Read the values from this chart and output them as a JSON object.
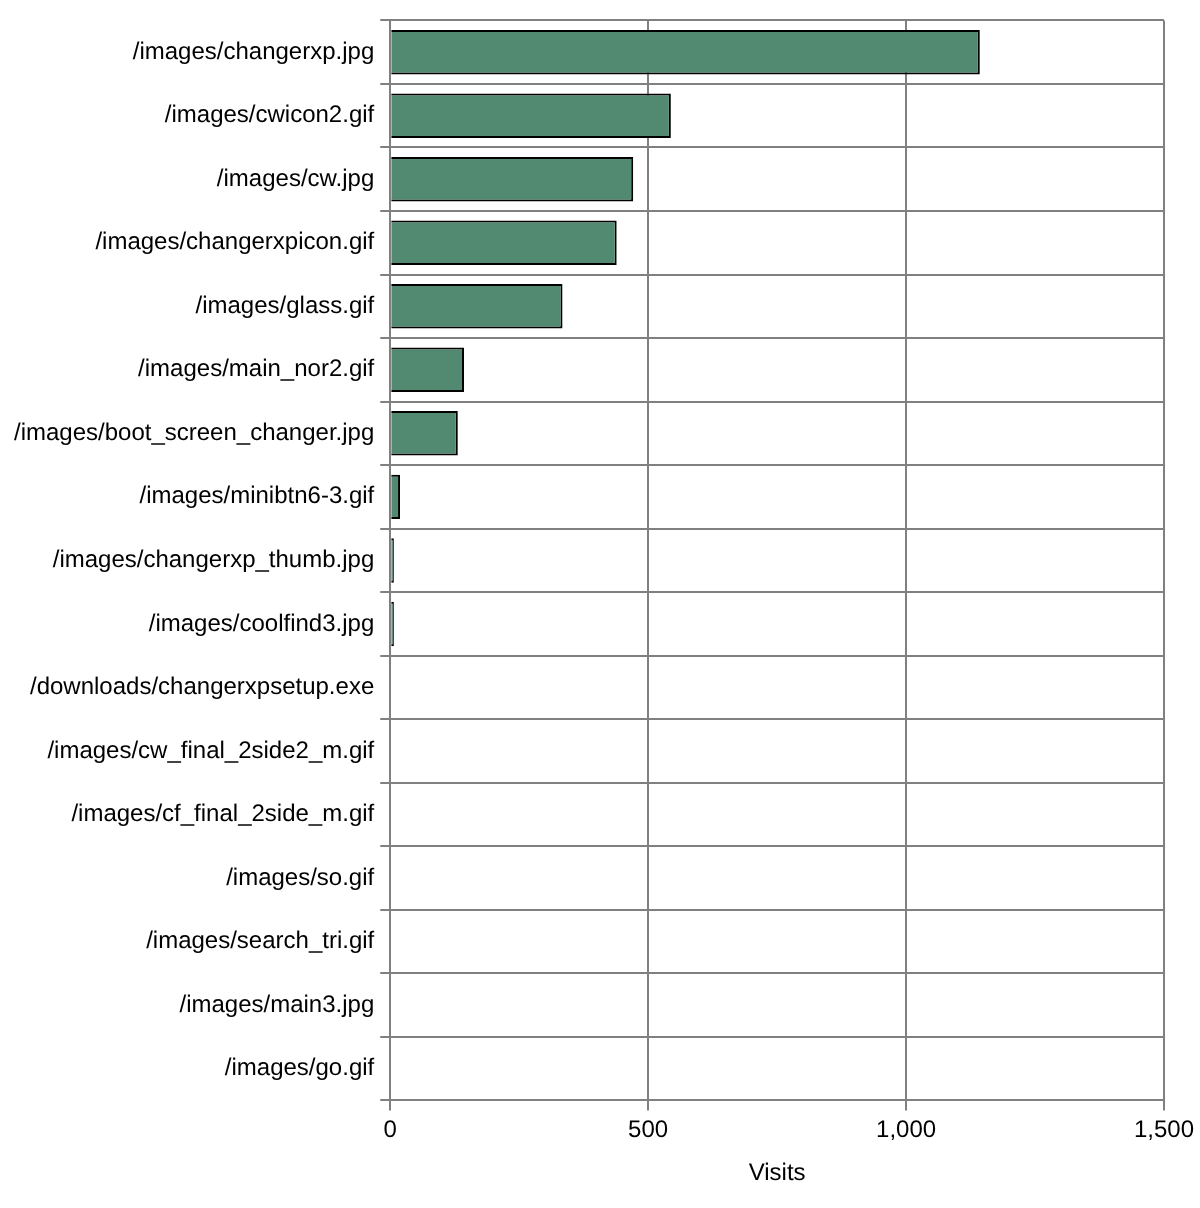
{
  "chart_data": {
    "type": "bar",
    "orientation": "horizontal",
    "xlabel": "Visits",
    "categories": [
      "/images/changerxp.jpg",
      "/images/cwicon2.gif",
      "/images/cw.jpg",
      "/images/changerxpicon.gif",
      "/images/glass.gif",
      "/images/main_nor2.gif",
      "/images/boot_screen_changer.jpg",
      "/images/minibtn6-3.gif",
      "/images/changerxp_thumb.jpg",
      "/images/coolfind3.jpg",
      "/downloads/changerxpsetup.exe",
      "/images/cw_final_2side2_m.gif",
      "/images/cf_final_2side_m.gif",
      "/images/so.gif",
      "/images/search_tri.gif",
      "/images/main3.jpg",
      "/images/go.gif"
    ],
    "values": [
      1143,
      544,
      471,
      439,
      334,
      143,
      131,
      19,
      7,
      7,
      2,
      2,
      2,
      2,
      2,
      2,
      2
    ],
    "color": "#518a71",
    "xlim": [
      0,
      1500
    ],
    "xticks": [
      0,
      500,
      {
        "value": 1000,
        "label": "1,000"
      },
      {
        "value": 1500,
        "label": "1,500"
      }
    ],
    "grid": true
  }
}
